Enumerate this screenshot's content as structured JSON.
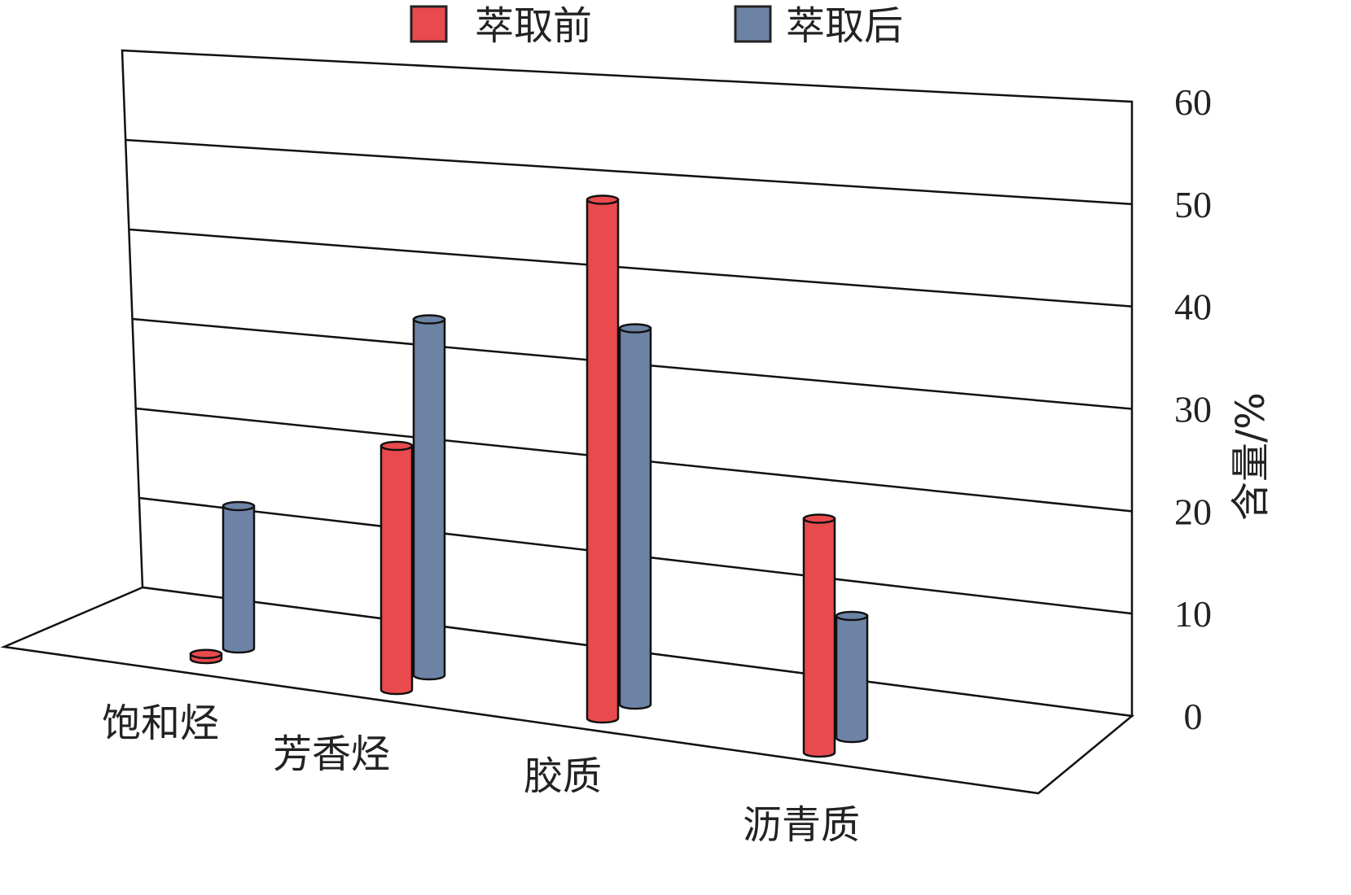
{
  "chart_data": {
    "type": "bar",
    "style": "3d-cylinder",
    "categories": [
      "饱和烃",
      "芳香烃",
      "胶质",
      "沥青质"
    ],
    "series": [
      {
        "name": "萃取前",
        "color": "#e84a4e",
        "values": [
          0.5,
          24,
          51,
          23
        ]
      },
      {
        "name": "萃取后",
        "color": "#6d83a6",
        "values": [
          14,
          35,
          37,
          12
        ]
      }
    ],
    "title": "",
    "xlabel": "",
    "ylabel": "含量/%",
    "ylim": [
      0,
      60
    ],
    "yticks": [
      "0",
      "10",
      "20",
      "30",
      "40",
      "50",
      "60"
    ],
    "grid": true,
    "legend_position": "top"
  }
}
